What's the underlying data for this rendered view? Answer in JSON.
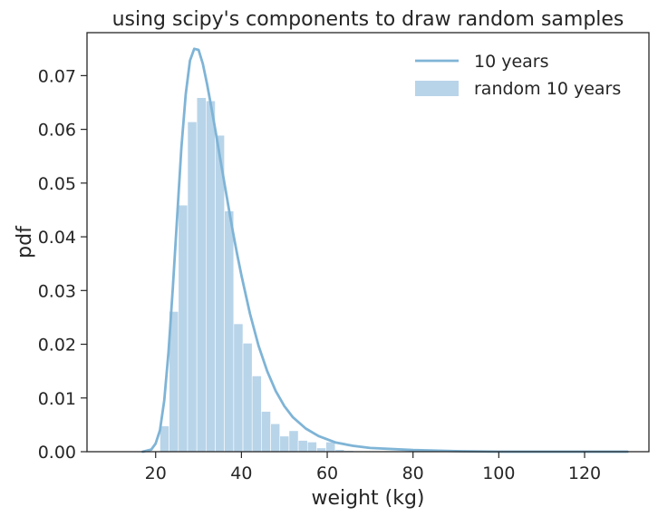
{
  "chart_data": {
    "type": "bar",
    "title": "using scipy's components to draw random samples",
    "xlabel": "weight (kg)",
    "ylabel": "pdf",
    "xlim": [
      4,
      135
    ],
    "ylim": [
      0,
      0.078
    ],
    "xticks": [
      20,
      40,
      60,
      80,
      100,
      120
    ],
    "yticks": [
      0.0,
      0.01,
      0.02,
      0.03,
      0.04,
      0.05,
      0.06,
      0.07
    ],
    "ytick_labels": [
      "0.00",
      "0.01",
      "0.02",
      "0.03",
      "0.04",
      "0.05",
      "0.06",
      "0.07"
    ],
    "grid": false,
    "legend_position": "top-right",
    "series": [
      {
        "name": "10 years",
        "kind": "line",
        "color": "#7fb4d6",
        "x": [
          17,
          19,
          20,
          21,
          22,
          23,
          24,
          25,
          26,
          27,
          28,
          29,
          30,
          31,
          32,
          33,
          34,
          35,
          36,
          37,
          38,
          39,
          40,
          42,
          44,
          46,
          48,
          50,
          52,
          55,
          58,
          62,
          66,
          70,
          80,
          90,
          100,
          110,
          120,
          130
        ],
        "y": [
          0.0,
          0.0004,
          0.0015,
          0.004,
          0.0095,
          0.0185,
          0.0305,
          0.0435,
          0.0565,
          0.0665,
          0.0728,
          0.075,
          0.0748,
          0.0722,
          0.0684,
          0.064,
          0.0595,
          0.0548,
          0.0501,
          0.0455,
          0.041,
          0.0368,
          0.0328,
          0.0257,
          0.0197,
          0.015,
          0.0113,
          0.0085,
          0.0064,
          0.0043,
          0.0029,
          0.0017,
          0.0011,
          0.0007,
          0.0003,
          0.0001,
          0.0,
          0.0,
          0.0,
          0.0
        ]
      },
      {
        "name": "random 10 years",
        "kind": "histogram",
        "color": "#a6c9e3",
        "bin_start": 21,
        "bin_width": 2.15,
        "values": [
          0.0048,
          0.0261,
          0.0459,
          0.0614,
          0.0659,
          0.0653,
          0.0589,
          0.0448,
          0.0238,
          0.0202,
          0.0141,
          0.0075,
          0.0052,
          0.0029,
          0.0039,
          0.0021,
          0.0018,
          0.0007,
          0.0018,
          0.0004,
          0.0002
        ]
      }
    ]
  }
}
